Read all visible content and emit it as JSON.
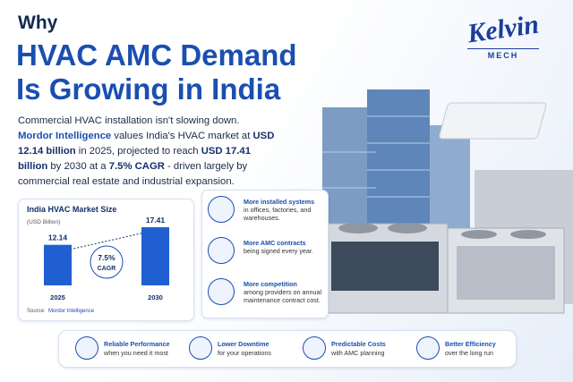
{
  "header": {
    "kicker": "Why",
    "title_lines": [
      "HVAC AMC Demand",
      "Is Growing in India"
    ]
  },
  "logo": {
    "name": "Kelvin",
    "sub": "MECH"
  },
  "intro": {
    "lead": "Commercial HVAC installation isn't slowing down.",
    "segments": [
      {
        "text": "Mordor Intelligence",
        "style": "source"
      },
      {
        "text": " values India's HVAC market at ",
        "style": "plain"
      },
      {
        "text": "USD 12.14 billion",
        "style": "bold"
      },
      {
        "text": " in 2025, projected to reach ",
        "style": "plain"
      },
      {
        "text": "USD 17.41 billion",
        "style": "bold"
      },
      {
        "text": " by 2030 at a ",
        "style": "plain"
      },
      {
        "text": "7.5% CAGR",
        "style": "bold"
      },
      {
        "text": " - driven largely by commercial real estate and industrial expansion.",
        "style": "plain"
      }
    ]
  },
  "chart": {
    "type": "bar",
    "title": "India HVAC Market Size",
    "subtitle": "(USD Billion)",
    "categories": [
      "2025",
      "2030"
    ],
    "values": [
      12.14,
      17.41
    ],
    "color": "#1f5fd1",
    "annotation": [
      "7.5%",
      "CAGR"
    ],
    "source_label": "Source:",
    "source": "Mordor Intelligence"
  },
  "features": [
    {
      "title": "More installed systems",
      "text": "in offices, factories, and warehouses."
    },
    {
      "title": "More AMC contracts",
      "text": "being signed every year."
    },
    {
      "title": "More competition",
      "text": "among providers on annual maintenance contract cost."
    }
  ],
  "benefits": [
    {
      "title": "Reliable Performance",
      "text": "when you need it most"
    },
    {
      "title": "Lower Downtime",
      "text": "for your operations"
    },
    {
      "title": "Predictable Costs",
      "text": "with AMC planning"
    },
    {
      "title": "Better Efficiency",
      "text": "over the long run"
    }
  ]
}
